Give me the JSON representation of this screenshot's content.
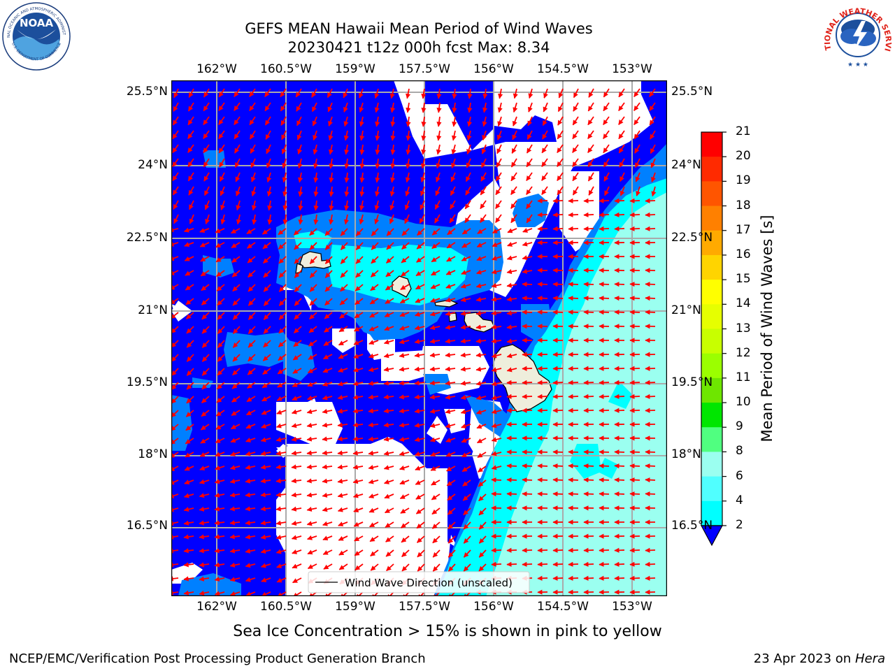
{
  "header": {
    "title_line1": "GEFS MEAN Hawaii Mean Period of Wind Waves",
    "title_line2": "20230421 t12z 000h fcst   Max: 8.34"
  },
  "logos": {
    "left_text": "NOAA",
    "left_ring_top": "NATIONAL OCEANIC AND ATMOSPHERIC ADMINISTRATION",
    "left_ring_bottom": "U.S. DEPARTMENT OF COMMERCE",
    "right_ring": "NATIONAL WEATHER SERVICE"
  },
  "map": {
    "lon_labels": [
      "162°W",
      "160.5°W",
      "159°W",
      "157.5°W",
      "156°W",
      "154.5°W",
      "153°W"
    ],
    "lat_labels": [
      "25.5°N",
      "24°N",
      "22.5°N",
      "21°N",
      "19.5°N",
      "18°N",
      "16.5°N"
    ],
    "legend_label": "Wind Wave Direction (unscaled)",
    "colors": {
      "below_2": "#0000ff",
      "2_4": "#0080ff",
      "4_6": "#00ffff",
      "land": "#eeeedc",
      "arrow": "#ff0000"
    }
  },
  "colorbar": {
    "label": "Mean Period of Wind Waves [s]",
    "ticks": [
      "21",
      "20",
      "19",
      "18",
      "17",
      "16",
      "15",
      "14",
      "13",
      "12",
      "11",
      "10",
      "9",
      "8",
      "6",
      "4",
      "2"
    ],
    "colors": [
      "#ff0000",
      "#ff2a00",
      "#ff5500",
      "#ff8000",
      "#ffaa00",
      "#ffd400",
      "#ffff00",
      "#e6ff00",
      "#c8ff00",
      "#9bff00",
      "#6ee600",
      "#00e600",
      "#50ff80",
      "#9bfff0",
      "#50ffff",
      "#00ffff",
      "#0080ff"
    ],
    "extend_color": "#0000ff"
  },
  "caption": "Sea Ice Concentration > 15% is shown in pink to yellow",
  "footer": {
    "left": "NCEP/EMC/Verification Post Processing Product Generation Branch",
    "right_prefix": "23 Apr 2023 on ",
    "right_italic": "Hera"
  }
}
